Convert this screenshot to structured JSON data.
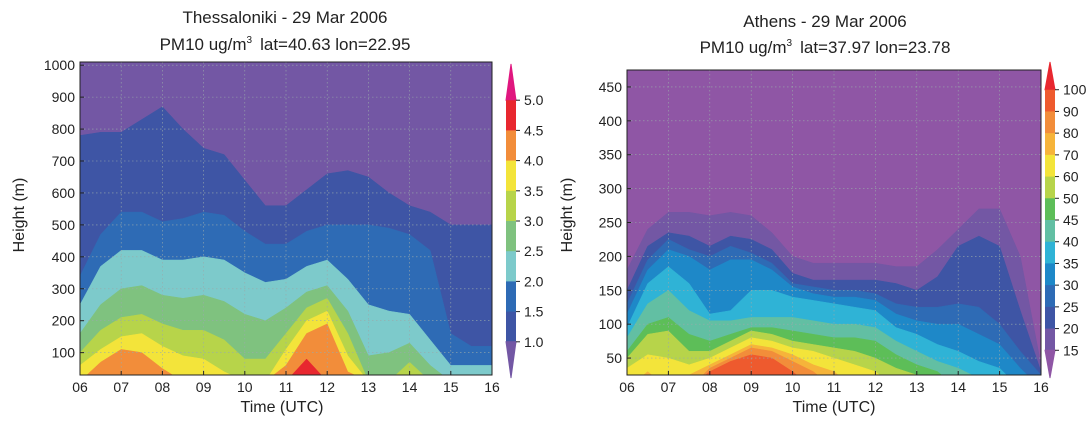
{
  "chart_data": [
    {
      "type": "heatmap",
      "title": "Thessaloniki - 29 Mar 2006",
      "subtitle": {
        "quantity": "PM10 ug/m",
        "exponent": "3",
        "coords": "lat=40.63  lon=22.95"
      },
      "xlabel": "Time (UTC)",
      "ylabel": "Height (m)",
      "x_ticks": [
        "06",
        "07",
        "08",
        "09",
        "10",
        "11",
        "12",
        "13",
        "14",
        "15",
        "16"
      ],
      "y_ticks": [
        "100",
        "200",
        "300",
        "400",
        "500",
        "600",
        "700",
        "800",
        "900",
        "1000"
      ],
      "xlim": [
        6,
        16
      ],
      "ylim": [
        30,
        1010
      ],
      "grid": true,
      "colorbar": {
        "levels": [
          "5.0",
          "4.5",
          "4.0",
          "3.5",
          "3.0",
          "2.5",
          "2.0",
          "1.5",
          "1.0"
        ],
        "colors": [
          "#E0177F",
          "#E8272F",
          "#F28D3A",
          "#F3E43A",
          "#B7D44A",
          "#7FC27F",
          "#7DCACB",
          "#2E6BB5",
          "#3E55A5",
          "#7357A4"
        ]
      },
      "contour_tops": {
        "x": [
          6,
          6.5,
          7,
          7.5,
          8,
          8.5,
          9,
          9.5,
          10,
          10.5,
          11,
          11.5,
          12,
          12.5,
          13,
          13.5,
          14,
          14.5,
          15,
          15.5,
          16
        ],
        "levels": [
          {
            "value": 1.5,
            "heights": [
              780,
              790,
              790,
              830,
              870,
              800,
              740,
              720,
              640,
              560,
              560,
              610,
              660,
              670,
              650,
              600,
              560,
              540,
              500,
              500,
              500
            ]
          },
          {
            "value": 2.0,
            "heights": [
              340,
              470,
              540,
              540,
              510,
              520,
              540,
              530,
              480,
              440,
              440,
              480,
              500,
              500,
              500,
              490,
              470,
              420,
              160,
              120,
              120
            ]
          },
          {
            "value": 2.5,
            "heights": [
              250,
              370,
              420,
              420,
              390,
              390,
              400,
              390,
              350,
              320,
              330,
              370,
              390,
              330,
              250,
              230,
              220,
              140,
              60,
              60,
              60
            ]
          },
          {
            "value": 3.0,
            "heights": [
              160,
              250,
              300,
              310,
              280,
              270,
              280,
              260,
              220,
              200,
              240,
              290,
              310,
              230,
              90,
              100,
              130,
              60,
              0,
              0,
              0
            ]
          },
          {
            "value": 3.5,
            "heights": [
              100,
              170,
              210,
              220,
              190,
              170,
              170,
              140,
              80,
              80,
              160,
              240,
              270,
              160,
              0,
              0,
              70,
              0,
              0,
              0,
              0
            ]
          },
          {
            "value": 4.0,
            "heights": [
              60,
              110,
              150,
              160,
              120,
              90,
              80,
              40,
              0,
              0,
              110,
              200,
              230,
              90,
              0,
              0,
              0,
              0,
              0,
              0,
              0
            ]
          },
          {
            "value": 4.5,
            "heights": [
              0,
              70,
              110,
              100,
              50,
              0,
              0,
              0,
              0,
              0,
              60,
              160,
              190,
              40,
              0,
              0,
              0,
              0,
              0,
              0,
              0
            ]
          },
          {
            "value": 5.0,
            "heights": [
              0,
              0,
              0,
              0,
              0,
              0,
              0,
              0,
              0,
              0,
              0,
              80,
              0,
              0,
              0,
              0,
              0,
              0,
              0,
              0,
              0
            ]
          }
        ]
      }
    },
    {
      "type": "heatmap",
      "title": "Athens - 29 Mar 2006",
      "subtitle": {
        "quantity": "PM10 ug/m",
        "exponent": "3",
        "coords": "lat=37.97  lon=23.78"
      },
      "xlabel": "Time (UTC)",
      "ylabel": "Height (m)",
      "x_ticks": [
        "06",
        "07",
        "08",
        "09",
        "10",
        "11",
        "12",
        "13",
        "14",
        "15",
        "16"
      ],
      "y_ticks": [
        "50",
        "100",
        "150",
        "200",
        "250",
        "300",
        "350",
        "400",
        "450"
      ],
      "xlim": [
        6,
        16
      ],
      "ylim": [
        25,
        475
      ],
      "grid": true,
      "colorbar": {
        "levels": [
          "100",
          "90",
          "80",
          "70",
          "60",
          "50",
          "45",
          "40",
          "35",
          "30",
          "25",
          "20",
          "15"
        ],
        "colors": [
          "#E8272F",
          "#EE5A2E",
          "#F28D3A",
          "#F6B43A",
          "#F3E43A",
          "#B7D44A",
          "#5DBE58",
          "#62BFA3",
          "#2FB3D6",
          "#1E88C8",
          "#2E6BB5",
          "#3E55A5",
          "#7357A4",
          "#8F56A5"
        ]
      },
      "contour_tops": {
        "x": [
          6,
          6.5,
          7,
          7.5,
          8,
          8.5,
          9,
          9.5,
          10,
          10.5,
          11,
          11.5,
          12,
          12.5,
          13,
          13.5,
          14,
          14.5,
          15,
          15.5,
          16
        ],
        "levels": [
          {
            "value": 15,
            "heights": [
              180,
              240,
              265,
              265,
              260,
              265,
              260,
              235,
              200,
              190,
              190,
              190,
              190,
              185,
              185,
              210,
              240,
              270,
              270,
              200,
              40
            ]
          },
          {
            "value": 20,
            "heights": [
              150,
              215,
              235,
              230,
              215,
              230,
              225,
              210,
              175,
              165,
              165,
              165,
              165,
              160,
              150,
              170,
              215,
              230,
              215,
              120,
              30
            ]
          },
          {
            "value": 25,
            "heights": [
              130,
              195,
              225,
              210,
              200,
              215,
              205,
              190,
              160,
              155,
              150,
              150,
              145,
              130,
              125,
              125,
              130,
              125,
              100,
              60,
              25
            ]
          },
          {
            "value": 30,
            "heights": [
              115,
              180,
              210,
              200,
              180,
              195,
              195,
              180,
              155,
              145,
              140,
              140,
              135,
              115,
              105,
              100,
              100,
              85,
              70,
              35,
              0
            ]
          },
          {
            "value": 35,
            "heights": [
              95,
              160,
              185,
              160,
              115,
              120,
              150,
              150,
              140,
              135,
              130,
              125,
              120,
              95,
              85,
              70,
              60,
              45,
              35,
              0,
              0
            ]
          },
          {
            "value": 40,
            "heights": [
              80,
              130,
              150,
              120,
              105,
              105,
              110,
              110,
              110,
              105,
              100,
              100,
              95,
              75,
              60,
              45,
              35,
              20,
              0,
              0,
              0
            ]
          },
          {
            "value": 45,
            "heights": [
              60,
              100,
              110,
              85,
              75,
              85,
              95,
              95,
              90,
              85,
              80,
              80,
              75,
              55,
              40,
              30,
              0,
              0,
              0,
              0,
              0
            ]
          },
          {
            "value": 50,
            "heights": [
              50,
              85,
              90,
              60,
              60,
              75,
              90,
              85,
              75,
              70,
              65,
              60,
              50,
              35,
              25,
              0,
              0,
              0,
              0,
              0,
              0
            ]
          },
          {
            "value": 60,
            "heights": [
              35,
              55,
              50,
              40,
              50,
              65,
              80,
              75,
              65,
              60,
              50,
              40,
              30,
              0,
              0,
              0,
              0,
              0,
              0,
              0,
              0
            ]
          },
          {
            "value": 70,
            "heights": [
              0,
              30,
              0,
              25,
              40,
              55,
              70,
              65,
              55,
              40,
              30,
              0,
              0,
              0,
              0,
              0,
              0,
              0,
              0,
              0,
              0
            ]
          },
          {
            "value": 80,
            "heights": [
              0,
              0,
              0,
              0,
              35,
              50,
              65,
              60,
              45,
              30,
              0,
              0,
              0,
              0,
              0,
              0,
              0,
              0,
              0,
              0,
              0
            ]
          },
          {
            "value": 90,
            "heights": [
              0,
              0,
              0,
              0,
              30,
              45,
              55,
              50,
              30,
              0,
              0,
              0,
              0,
              0,
              0,
              0,
              0,
              0,
              0,
              0,
              0
            ]
          }
        ]
      }
    }
  ]
}
